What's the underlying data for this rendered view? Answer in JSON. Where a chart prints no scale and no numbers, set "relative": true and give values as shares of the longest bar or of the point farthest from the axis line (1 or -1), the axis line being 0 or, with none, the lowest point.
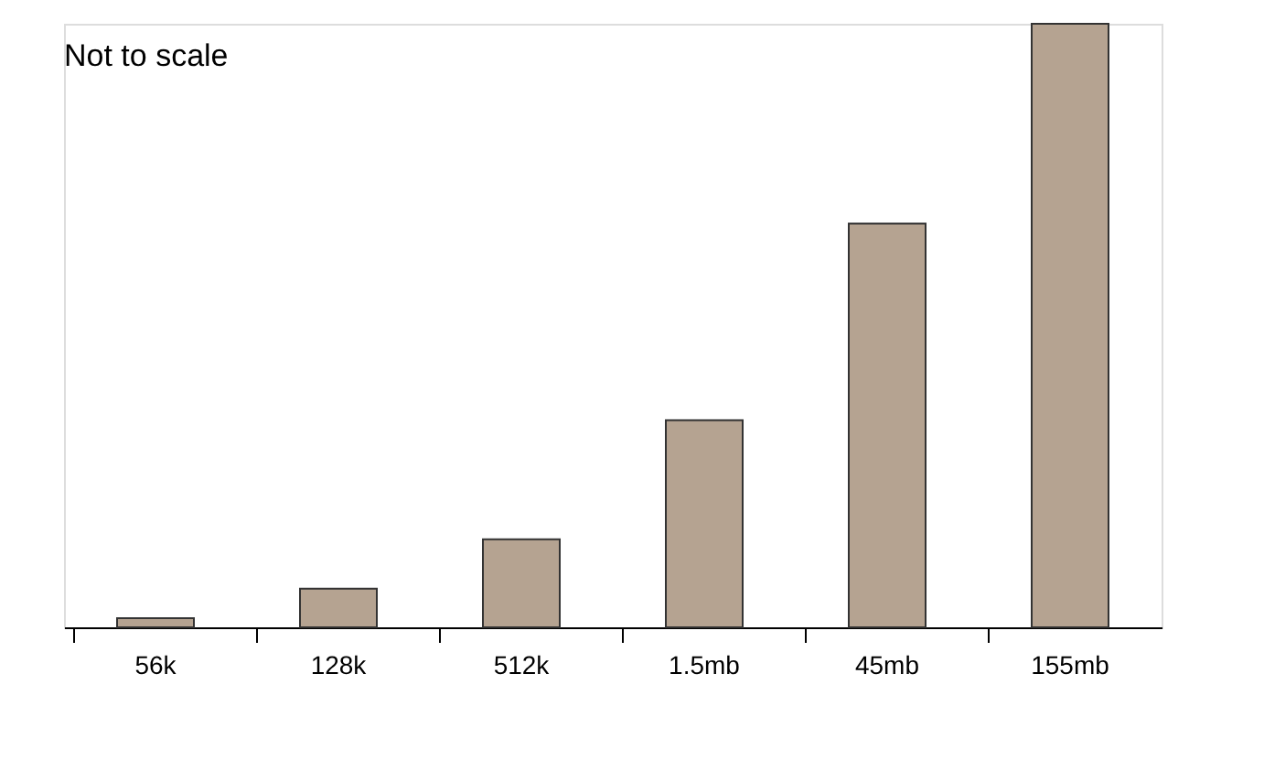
{
  "chart_data": {
    "type": "bar",
    "relative": true,
    "categories": [
      "56k",
      "128k",
      "512k",
      "1.5mb",
      "45mb",
      "155mb"
    ],
    "values": [
      0.015,
      0.064,
      0.146,
      0.343,
      0.669,
      1
    ],
    "color": "#b5a391",
    "annotations": [
      "Not to scale"
    ],
    "grid": false
  }
}
